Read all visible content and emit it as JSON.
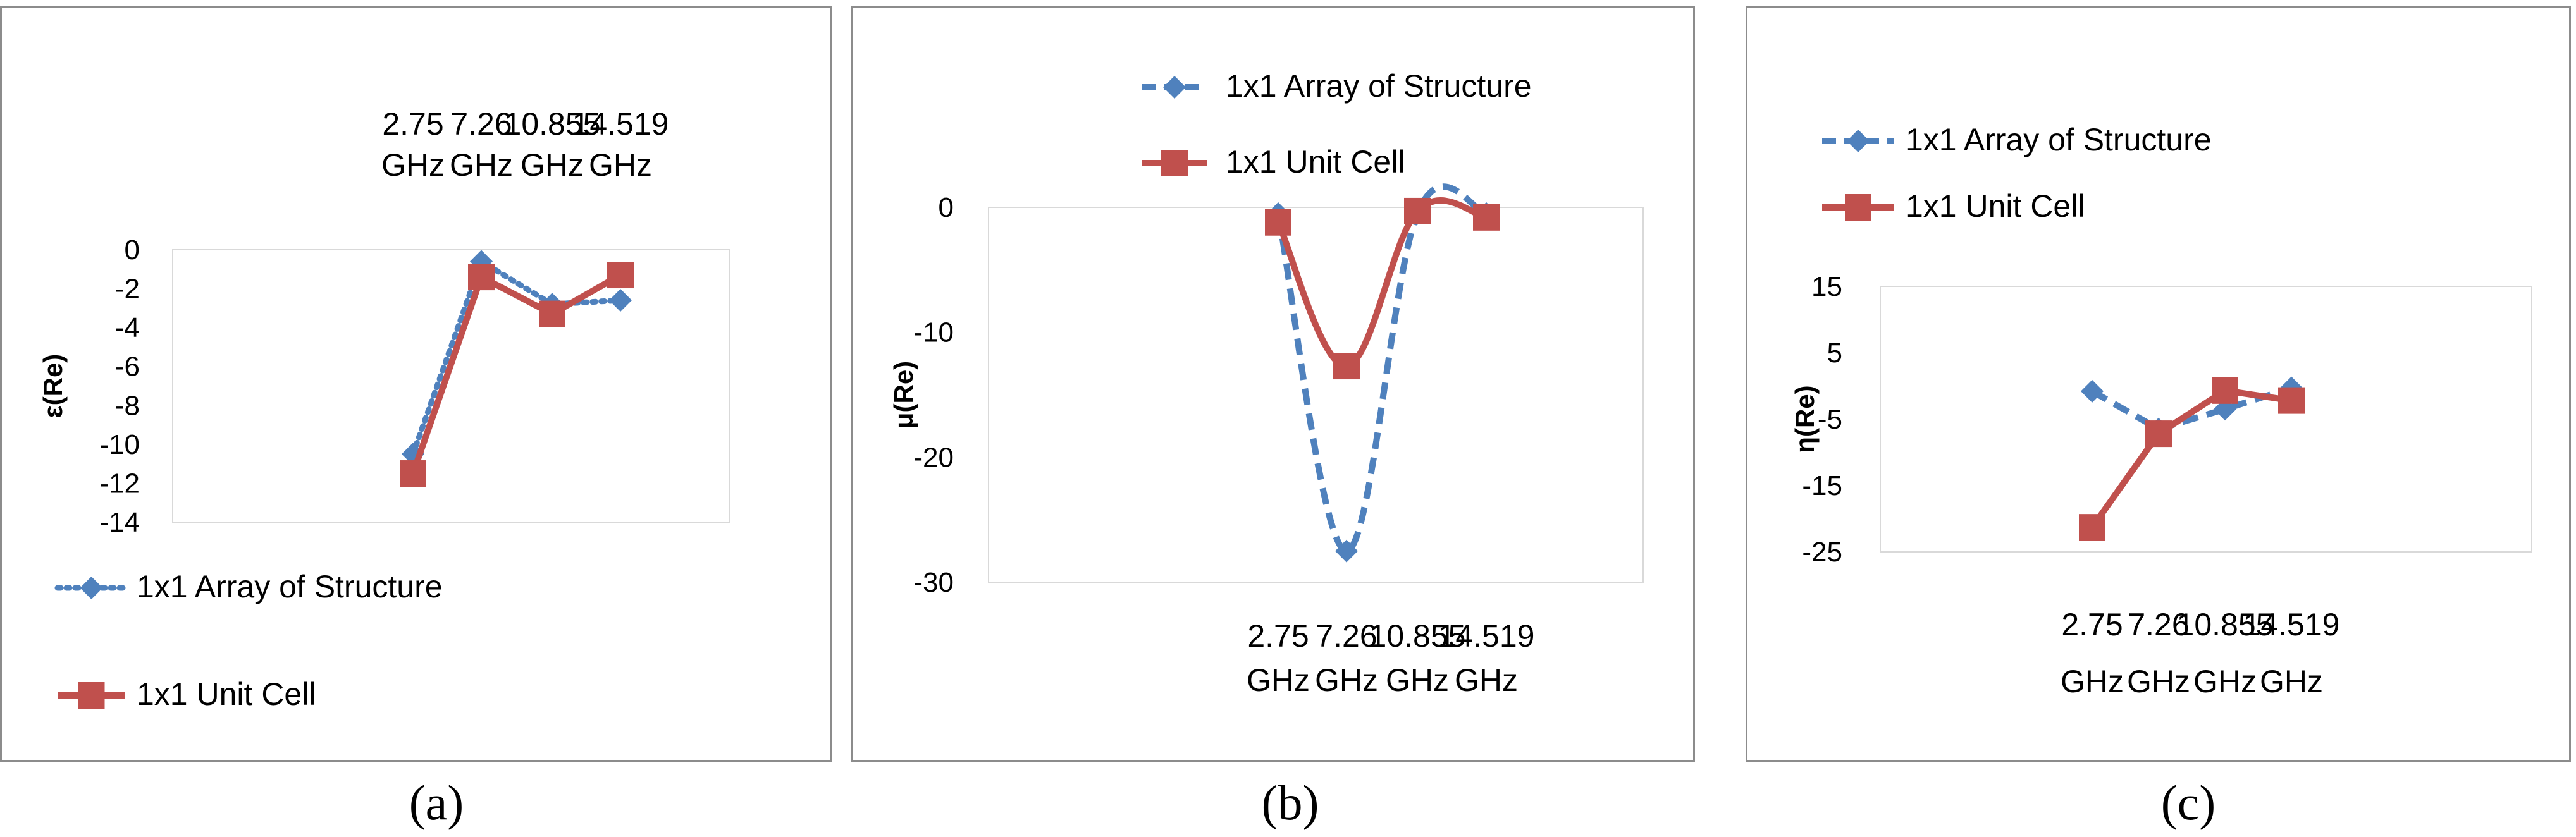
{
  "chart_data": [
    {
      "type": "line",
      "panel": "a",
      "caption": "(a)",
      "ylabel": "ε(Re)",
      "xlabel": "",
      "categories": [
        [
          "2.75",
          "GHz"
        ],
        [
          "7.26",
          "GHz"
        ],
        [
          "10.855",
          "GHz"
        ],
        [
          "14.519",
          "GHz"
        ]
      ],
      "yticks": [
        "0",
        "-2",
        "-4",
        "-6",
        "-8",
        "-10",
        "-12",
        "-14"
      ],
      "ylim": [
        -14,
        0
      ],
      "legend_position": "bottom",
      "category_position": "top",
      "series": [
        {
          "name": "1x1  Array of Structure",
          "values": [
            -10.5,
            -0.6,
            -2.8,
            -2.6
          ],
          "color": "#4f81bd",
          "marker": "diamond",
          "dash": "dotted",
          "smooth": false
        },
        {
          "name": "1x1 Unit Cell",
          "values": [
            -11.5,
            -1.4,
            -3.3,
            -1.3
          ],
          "color": "#c0504d",
          "marker": "square",
          "dash": "solid",
          "smooth": false
        }
      ]
    },
    {
      "type": "line",
      "panel": "b",
      "caption": "(b)",
      "ylabel": "μ(Re)",
      "xlabel": "",
      "categories": [
        [
          "2.75",
          "GHz"
        ],
        [
          "7.26",
          "GHz"
        ],
        [
          "10.855",
          "GHz"
        ],
        [
          "14.519",
          "GHz"
        ]
      ],
      "yticks": [
        "0",
        "-10",
        "-20",
        "-30"
      ],
      "ylim": [
        -30,
        0
      ],
      "legend_position": "top",
      "category_position": "bottom",
      "series": [
        {
          "name": "1x1  Array of Structure",
          "values": [
            -0.5,
            -27.5,
            -0.5,
            -0.5
          ],
          "color": "#4f81bd",
          "marker": "diamond",
          "dash": "dashed",
          "smooth": true
        },
        {
          "name": "1x1  Unit Cell",
          "values": [
            -1.2,
            -12.7,
            -0.3,
            -0.8
          ],
          "color": "#c0504d",
          "marker": "square",
          "dash": "solid",
          "smooth": true
        }
      ]
    },
    {
      "type": "line",
      "panel": "c",
      "caption": "(c)",
      "ylabel": "η(Re)",
      "xlabel": "",
      "categories": [
        [
          "2.75",
          "GHz"
        ],
        [
          "7.26",
          "GHz"
        ],
        [
          "10.855",
          "GHz"
        ],
        [
          "14.519",
          "GHz"
        ]
      ],
      "yticks": [
        "15",
        "5",
        "-5",
        "-15",
        "-25"
      ],
      "ylim": [
        -25,
        15
      ],
      "legend_position": "top",
      "category_position": "bottom",
      "series": [
        {
          "name": "1x1  Array of Structure",
          "values": [
            -0.8,
            -6.5,
            -3.5,
            -0.3
          ],
          "color": "#4f81bd",
          "marker": "diamond",
          "dash": "dashed",
          "smooth": false
        },
        {
          "name": "1x1  Unit Cell",
          "values": [
            -21.3,
            -7.2,
            -0.7,
            -2.2
          ],
          "color": "#c0504d",
          "marker": "square",
          "dash": "solid",
          "smooth": false
        }
      ]
    }
  ]
}
